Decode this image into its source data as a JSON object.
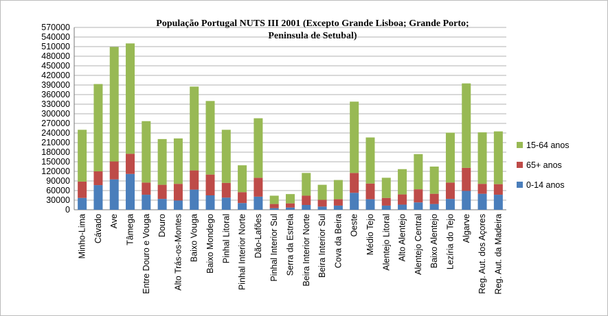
{
  "chart_data": {
    "type": "stacked_bar",
    "title": [
      "População Portugal NUTS III  2001 (Excepto Grande Lisboa; Grande Porto;",
      "Peninsula de Setubal)"
    ],
    "categories": [
      "Minho-Lima",
      "Cávado",
      "Ave",
      "Tâmega",
      "Entre Douro e Vouga",
      "Douro",
      "Alto Trás-os-Montes",
      "Baixo Vouga",
      "Baixo Mondego",
      "Pinhal Litoral",
      "Pinhal Interior Norte",
      "Dão-Lafões",
      "Pinhal Interior Sul",
      "Serra da Estrela",
      "Beira Interior Norte",
      "Beira Interior Sul",
      "Cova da Beira",
      "Oeste",
      "Médio Tejo",
      "Alentejo Litoral",
      "Alto Alentejo",
      "Alentejo Central",
      "Baixo Alentejo",
      "Lezíria do Tejo",
      "Algarve",
      "Reg. Aut. dos Açores",
      "Reg. Aut. da Madeira"
    ],
    "series": [
      {
        "name": "0-14 anos",
        "color": "#4a7ebb",
        "values": [
          37000,
          77000,
          95000,
          112000,
          47000,
          34000,
          29000,
          63000,
          45000,
          38000,
          21000,
          41000,
          5000,
          7000,
          15000,
          10000,
          13000,
          53000,
          33000,
          13000,
          16000,
          23000,
          18000,
          34000,
          59000,
          50000,
          47000
        ]
      },
      {
        "name": "65+ anos",
        "color": "#be4b48",
        "values": [
          51000,
          43000,
          56000,
          63000,
          38000,
          44000,
          52000,
          60000,
          65000,
          46000,
          34000,
          59000,
          13000,
          13000,
          29000,
          21000,
          20000,
          62000,
          49000,
          24000,
          32000,
          41000,
          32000,
          51000,
          72000,
          31000,
          33000
        ]
      },
      {
        "name": "15-64 anos",
        "color": "#98b954",
        "values": [
          162000,
          273000,
          358000,
          345000,
          192000,
          143000,
          142000,
          262000,
          230000,
          166000,
          84000,
          186000,
          26000,
          29000,
          71000,
          47000,
          60000,
          223000,
          144000,
          63000,
          79000,
          110000,
          85000,
          156000,
          264000,
          161000,
          165000
        ]
      }
    ],
    "ylim": [
      0,
      570000
    ],
    "yticks": [
      0,
      30000,
      60000,
      90000,
      120000,
      150000,
      180000,
      210000,
      240000,
      270000,
      300000,
      330000,
      360000,
      390000,
      420000,
      450000,
      480000,
      510000,
      540000,
      570000
    ],
    "grid": true,
    "legend": "right"
  }
}
